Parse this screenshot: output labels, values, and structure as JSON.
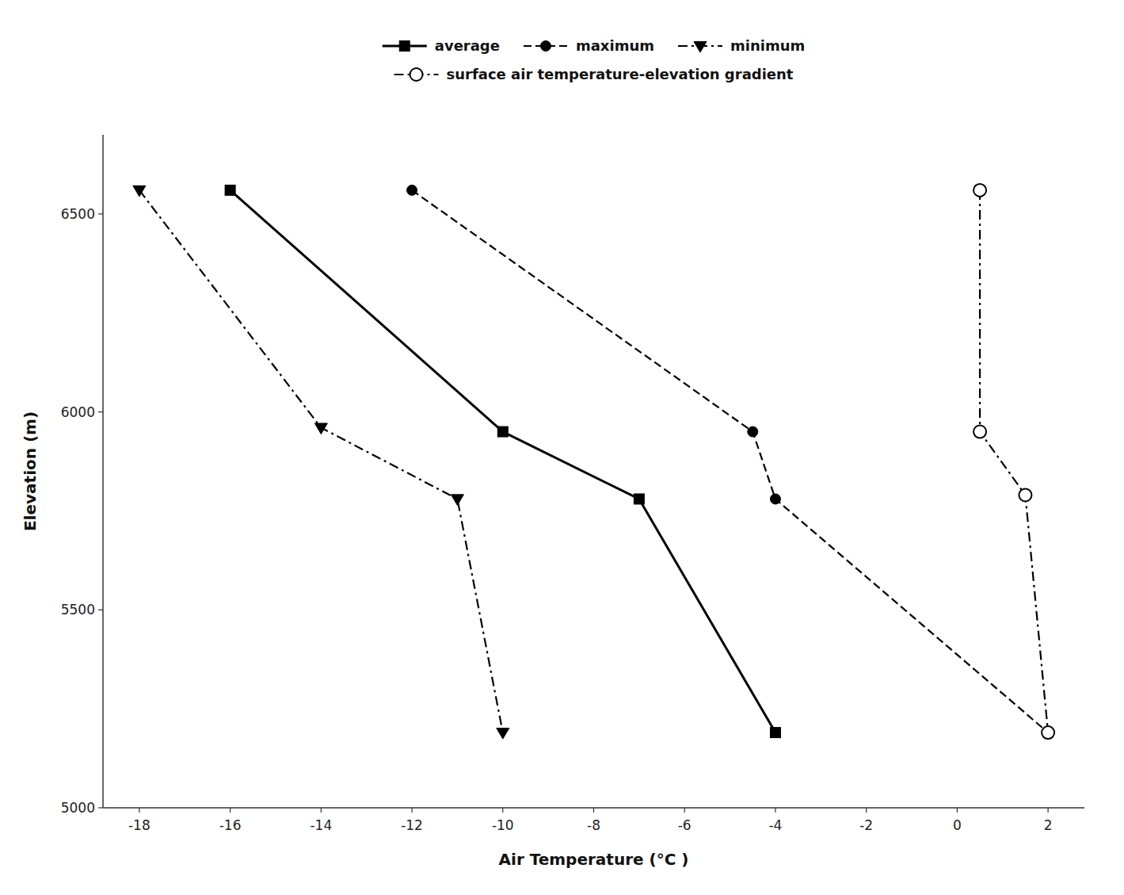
{
  "chart_data": {
    "type": "line",
    "xlabel": "Air Temperature (°C )",
    "ylabel": "Elevation (m)",
    "xlim": [
      -18.8,
      2.8
    ],
    "ylim": [
      5000,
      6700
    ],
    "xticks": [
      -18,
      -16,
      -14,
      -12,
      -10,
      -8,
      -6,
      -4,
      -2,
      0,
      2
    ],
    "yticks": [
      5000,
      5500,
      6000,
      6500
    ],
    "grid": false,
    "legend": "top",
    "series": [
      {
        "name": "average",
        "color": "#000000",
        "marker": "square",
        "line_style": "solid",
        "x": [
          -16.0,
          -10.0,
          -7.0,
          -4.0
        ],
        "values": [
          6560,
          5950,
          5780,
          5190
        ]
      },
      {
        "name": "maximum",
        "color": "#000000",
        "marker": "circle",
        "line_style": "dashed",
        "x": [
          -12.0,
          -4.5,
          -4.0,
          2.0
        ],
        "values": [
          6560,
          5950,
          5780,
          5190
        ]
      },
      {
        "name": "minimum",
        "color": "#000000",
        "marker": "triangle-down",
        "line_style": "dashdot",
        "x": [
          -18.0,
          -14.0,
          -11.0,
          -10.0
        ],
        "values": [
          6560,
          5960,
          5780,
          5190
        ]
      },
      {
        "name": "surface air temperature-elevation gradient",
        "color": "#000000",
        "marker": "open-circle",
        "line_style": "dashdot",
        "x": [
          0.5,
          0.5,
          1.5,
          2.0
        ],
        "values": [
          6560,
          5950,
          5790,
          5190
        ]
      }
    ]
  }
}
